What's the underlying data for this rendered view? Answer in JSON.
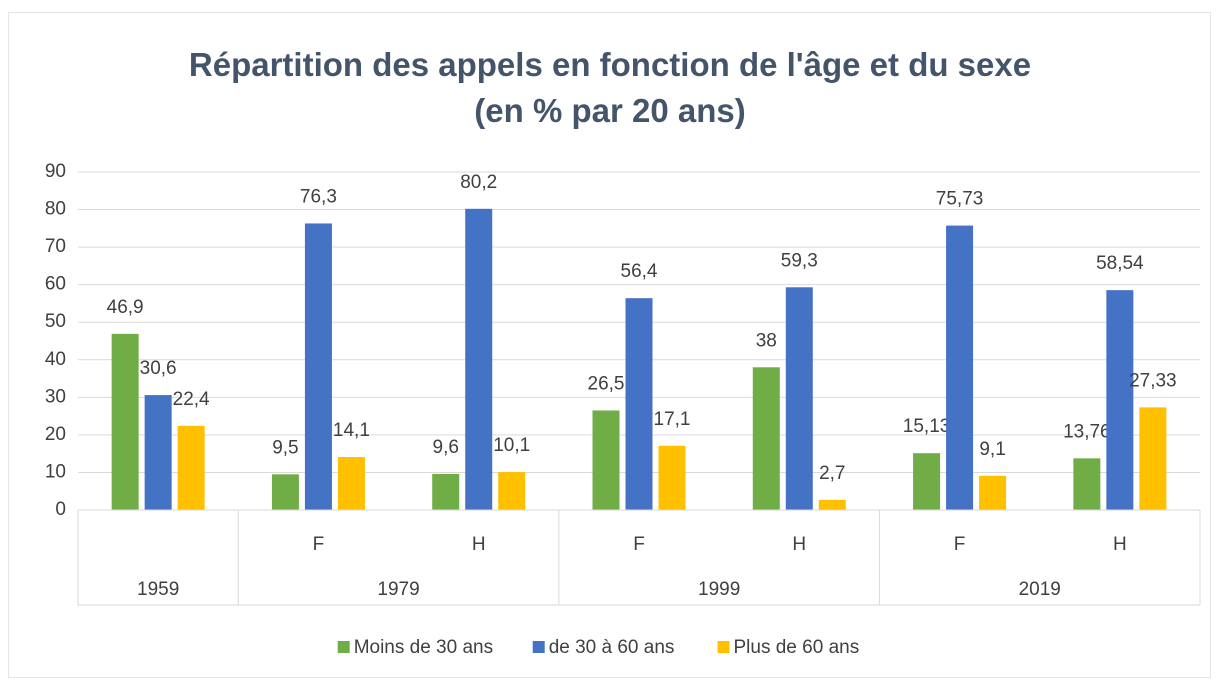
{
  "chart_data": {
    "type": "bar",
    "title": "Répartition des appels en fonction de l'âge et du sexe (en % par 20 ans)",
    "category_groups": [
      {
        "name": "1959",
        "categories": [
          null
        ]
      },
      {
        "name": "1979",
        "categories": [
          "F",
          "H"
        ]
      },
      {
        "name": "1999",
        "categories": [
          "F",
          "H"
        ]
      },
      {
        "name": "2019",
        "categories": [
          "F",
          "H"
        ]
      }
    ],
    "series": [
      {
        "name": "Moins de 30 ans",
        "color": "#70ad47",
        "values": [
          46.9,
          9.5,
          9.6,
          26.5,
          38,
          15.13,
          13.76
        ],
        "value_labels": [
          "46,9",
          "9,5",
          "9,6",
          "26,5",
          "38",
          "15,13",
          "13,76"
        ]
      },
      {
        "name": "de 30 à 60 ans",
        "color": "#4472c4",
        "values": [
          30.6,
          76.3,
          80.2,
          56.4,
          59.3,
          75.73,
          58.54
        ],
        "value_labels": [
          "30,6",
          "76,3",
          "80,2",
          "56,4",
          "59,3",
          "75,73",
          "58,54"
        ]
      },
      {
        "name": "Plus de 60 ans",
        "color": "#ffc000",
        "values": [
          22.4,
          14.1,
          10.1,
          17.1,
          2.7,
          9.1,
          27.33
        ],
        "value_labels": [
          "22,4",
          "14,1",
          "10,1",
          "17,1",
          "2,7",
          "9,1",
          "27,33"
        ]
      }
    ],
    "ylim": [
      0,
      90
    ],
    "yticks": [
      0,
      10,
      20,
      30,
      40,
      50,
      60,
      70,
      80,
      90
    ],
    "grid": true,
    "legend": "bottom"
  }
}
